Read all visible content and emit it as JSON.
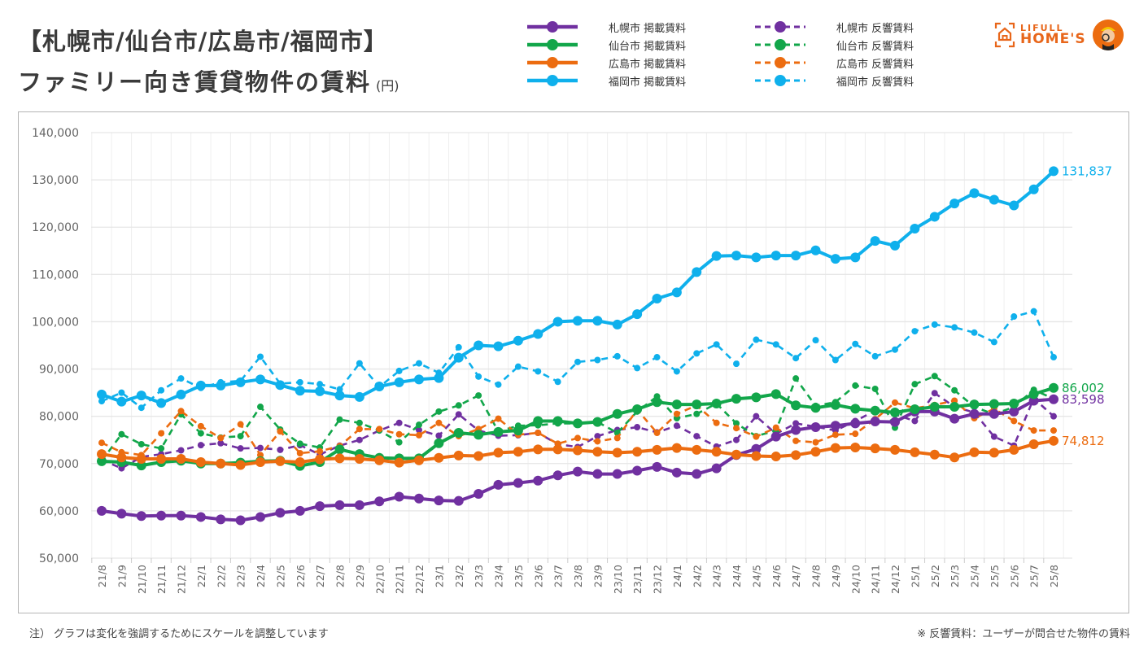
{
  "header": {
    "title_line1": "【札幌市/仙台市/広島市/福岡市】",
    "title_line2": "ファミリー向き賃貸物件の賃料",
    "unit": "(円)"
  },
  "logo": {
    "line1": "LIFULL",
    "line2": "HOME'S"
  },
  "footer": {
    "note_left": "注） グラフは変化を強調するためにスケールを調整しています",
    "note_right": "※ 反響賃料：ユーザーが問合せた物件の賃料"
  },
  "colors": {
    "sapporo": "#7030a0",
    "sendai": "#12a64a",
    "hiroshima": "#ec6c10",
    "fukuoka": "#0fb0ec",
    "grid": "#e6e6e6",
    "axis_text": "#666666"
  },
  "chart_data": {
    "type": "line",
    "title": "【札幌市/仙台市/広島市/福岡市】ファミリー向き賃貸物件の賃料 (円)",
    "xlabel": "",
    "ylabel": "",
    "ylim": [
      50000,
      140000
    ],
    "yticks": [
      50000,
      60000,
      70000,
      80000,
      90000,
      100000,
      110000,
      120000,
      130000,
      140000
    ],
    "ytick_labels": [
      "50,000",
      "60,000",
      "70,000",
      "80,000",
      "90,000",
      "100,000",
      "110,000",
      "120,000",
      "130,000",
      "140,000"
    ],
    "grid": true,
    "legend_position": "top-right",
    "x": [
      "21/8",
      "21/9",
      "21/10",
      "21/11",
      "21/12",
      "22/1",
      "22/2",
      "22/3",
      "22/4",
      "22/5",
      "22/6",
      "22/7",
      "22/8",
      "22/9",
      "22/10",
      "22/11",
      "22/12",
      "23/1",
      "23/2",
      "23/3",
      "23/4",
      "23/5",
      "23/6",
      "23/7",
      "23/8",
      "23/9",
      "23/10",
      "23/11",
      "23/12",
      "24/1",
      "24/2",
      "24/3",
      "24/4",
      "24/5",
      "24/6",
      "24/7",
      "24/8",
      "24/9",
      "24/10",
      "24/11",
      "24/12",
      "25/1",
      "25/2",
      "25/3",
      "25/4",
      "25/5",
      "25/6",
      "25/7",
      "25/8"
    ],
    "series": [
      {
        "name": "札幌市 掲載賃料",
        "city": "sapporo",
        "style": "solid",
        "end_label": "83,598",
        "values": [
          60000,
          59400,
          58900,
          59000,
          59000,
          58700,
          58200,
          58000,
          58700,
          59600,
          60000,
          61000,
          61200,
          61200,
          62000,
          63000,
          62600,
          62200,
          62100,
          63600,
          65500,
          65900,
          66400,
          67500,
          68300,
          67800,
          67800,
          68500,
          69300,
          68100,
          67800,
          69000,
          71800,
          73100,
          75700,
          77100,
          77700,
          78000,
          78500,
          78900,
          78800,
          81000,
          81000,
          79500,
          80500,
          80500,
          81000,
          83300,
          83598
        ]
      },
      {
        "name": "仙台市 掲載賃料",
        "city": "sendai",
        "style": "solid",
        "end_label": "86,002",
        "values": [
          70500,
          70300,
          69600,
          70300,
          70600,
          70000,
          70000,
          70200,
          70500,
          70600,
          69500,
          70300,
          73000,
          72000,
          71200,
          71100,
          71100,
          74300,
          76500,
          76100,
          76700,
          77000,
          79000,
          79000,
          78500,
          78800,
          80500,
          81500,
          83000,
          82500,
          82500,
          82700,
          83700,
          84000,
          84700,
          82300,
          81800,
          82400,
          81600,
          81200,
          80800,
          81500,
          82000,
          82000,
          82500,
          82600,
          82700,
          84700,
          86002
        ]
      },
      {
        "name": "広島市 掲載賃料",
        "city": "hiroshima",
        "style": "solid",
        "end_label": "74,812",
        "values": [
          72000,
          71300,
          71000,
          71000,
          71000,
          70300,
          70000,
          69700,
          70300,
          70500,
          70300,
          70900,
          71100,
          71000,
          70700,
          70200,
          70700,
          71200,
          71700,
          71600,
          72300,
          72500,
          73000,
          73000,
          72800,
          72500,
          72300,
          72500,
          72900,
          73300,
          72900,
          72500,
          71900,
          71600,
          71500,
          71800,
          72500,
          73300,
          73400,
          73200,
          72900,
          72400,
          71900,
          71300,
          72400,
          72300,
          72900,
          74100,
          74812
        ]
      },
      {
        "name": "福岡市 掲載賃料",
        "city": "fukuoka",
        "style": "solid",
        "end_label": "131,837",
        "values": [
          84600,
          83100,
          84400,
          82800,
          84600,
          86500,
          86500,
          87200,
          87800,
          86600,
          85400,
          85300,
          84400,
          84100,
          86300,
          87200,
          87800,
          88100,
          92400,
          95000,
          94800,
          96000,
          97400,
          100000,
          100200,
          100200,
          99400,
          101600,
          104900,
          106200,
          110500,
          113900,
          114000,
          113600,
          114000,
          114000,
          115100,
          113300,
          113600,
          117100,
          116100,
          119700,
          122200,
          125000,
          127200,
          125800,
          124600,
          128000,
          131837
        ]
      },
      {
        "name": "札幌市 反響賃料",
        "city": "sapporo",
        "style": "dashed",
        "values": [
          70800,
          69000,
          71400,
          72000,
          72800,
          73900,
          74300,
          73200,
          73300,
          72900,
          73900,
          71900,
          73800,
          75000,
          77000,
          78600,
          77100,
          75900,
          80400,
          77000,
          75900,
          76000,
          76500,
          74100,
          73500,
          75800,
          77100,
          77700,
          76600,
          78000,
          75800,
          73600,
          75000,
          80000,
          76300,
          78500,
          77800,
          77000,
          79000,
          81200,
          80400,
          79000,
          84900,
          82000,
          80800,
          75700,
          73800,
          83800,
          80000
        ]
      },
      {
        "name": "仙台市 反響賃料",
        "city": "sendai",
        "style": "dashed",
        "values": [
          70600,
          76200,
          74100,
          73200,
          80400,
          76400,
          75500,
          75800,
          82000,
          77200,
          74200,
          73400,
          79300,
          78600,
          77000,
          74500,
          78200,
          81000,
          82300,
          84400,
          76800,
          78000,
          78100,
          78500,
          78500,
          78800,
          76500,
          81000,
          84200,
          79600,
          80500,
          82700,
          78500,
          75800,
          77000,
          88000,
          82200,
          83000,
          86500,
          85800,
          77600,
          86800,
          88500,
          85500,
          82000,
          80400,
          82000,
          85600,
          83700
        ]
      },
      {
        "name": "広島市 反響賃料",
        "city": "hiroshima",
        "style": "dashed",
        "values": [
          74400,
          72400,
          71800,
          76400,
          81100,
          77900,
          75400,
          78300,
          71800,
          76800,
          72200,
          72600,
          73700,
          77300,
          77300,
          76200,
          76000,
          78600,
          75800,
          77300,
          79500,
          76100,
          76500,
          74200,
          75400,
          74700,
          75400,
          81400,
          76500,
          80500,
          82300,
          78600,
          77500,
          75700,
          77600,
          74800,
          74500,
          76100,
          76300,
          79400,
          82900,
          81700,
          82400,
          83300,
          79600,
          81600,
          79000,
          77000,
          77000
        ]
      },
      {
        "name": "福岡市 反響賃料",
        "city": "fukuoka",
        "style": "dashed",
        "values": [
          83200,
          85000,
          81800,
          85500,
          88000,
          86000,
          87200,
          87500,
          92600,
          86900,
          87200,
          86800,
          85700,
          91200,
          86200,
          89600,
          91200,
          89200,
          94600,
          88400,
          86700,
          90500,
          89500,
          87300,
          91500,
          91900,
          92700,
          90200,
          92500,
          89500,
          93300,
          95200,
          91100,
          96200,
          95200,
          92300,
          96100,
          91900,
          95300,
          92700,
          94100,
          98000,
          99400,
          98800,
          97700,
          95700,
          101100,
          102200,
          92500
        ]
      }
    ]
  }
}
